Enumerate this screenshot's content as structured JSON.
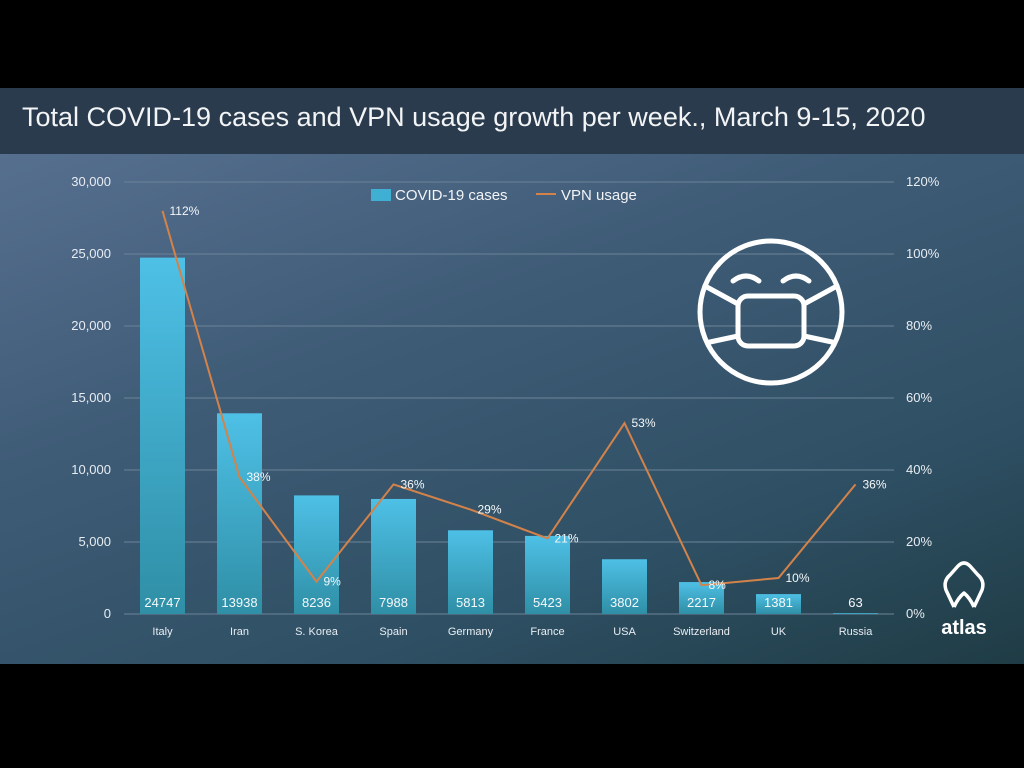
{
  "title": "Total COVID-19 cases and VPN usage growth per week., March 9-15, 2020",
  "brand": "atlas",
  "icons": [
    "face-mask-icon",
    "atlas-logo-icon"
  ],
  "colors": {
    "bar": "#3fb0d4",
    "line": "#d3834a",
    "grid": "#6c8398",
    "text": "#e8edf2"
  },
  "chart_data": {
    "type": "bar",
    "title": "Total COVID-19 cases and VPN usage growth per week., March 9-15, 2020",
    "categories": [
      "Italy",
      "Iran",
      "S. Korea",
      "Spain",
      "Germany",
      "France",
      "USA",
      "Switzerland",
      "UK",
      "Russia"
    ],
    "series": [
      {
        "name": "COVID-19 cases",
        "type": "bar",
        "axis": "left",
        "values": [
          24747,
          13938,
          8236,
          7988,
          5813,
          5423,
          3802,
          2217,
          1381,
          63
        ],
        "labels": [
          "24747",
          "13938",
          "8236",
          "7988",
          "5813",
          "5423",
          "3802",
          "2217",
          "1381",
          "63"
        ]
      },
      {
        "name": "VPN usage",
        "type": "line",
        "axis": "right",
        "values": [
          112,
          38,
          9,
          36,
          29,
          21,
          53,
          8,
          10,
          36
        ],
        "labels": [
          "112%",
          "38%",
          "9%",
          "36%",
          "29%",
          "21%",
          "53%",
          "8%",
          "10%",
          "36%"
        ]
      }
    ],
    "y_left": {
      "ylim": [
        0,
        30000
      ],
      "ticks": [
        "0",
        "5,000",
        "10,000",
        "15,000",
        "20,000",
        "25,000",
        "30,000"
      ]
    },
    "y_right": {
      "ylim": [
        0,
        120
      ],
      "ticks": [
        "0%",
        "20%",
        "40%",
        "60%",
        "80%",
        "100%",
        "120%"
      ]
    },
    "legend": "top-center",
    "grid": true
  }
}
